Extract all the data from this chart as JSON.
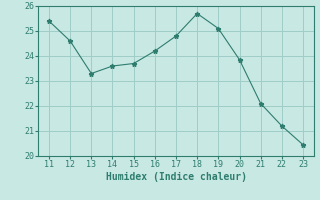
{
  "x": [
    11,
    12,
    13,
    14,
    15,
    16,
    17,
    18,
    19,
    20,
    21,
    22,
    23
  ],
  "y": [
    25.4,
    24.6,
    23.3,
    23.6,
    23.7,
    24.2,
    24.8,
    25.7,
    25.1,
    23.85,
    22.1,
    21.2,
    20.45
  ],
  "line_color": "#2e7d6e",
  "marker": "*",
  "marker_size": 3.5,
  "bg_color": "#c8e8e4",
  "grid_color": "#9fcdc8",
  "xlabel": "Humidex (Indice chaleur)",
  "xlabel_fontsize": 7,
  "tick_fontsize": 6,
  "ylim": [
    20,
    26
  ],
  "xlim": [
    10.5,
    23.5
  ],
  "yticks": [
    20,
    21,
    22,
    23,
    24,
    25,
    26
  ],
  "xticks": [
    11,
    12,
    13,
    14,
    15,
    16,
    17,
    18,
    19,
    20,
    21,
    22,
    23
  ]
}
